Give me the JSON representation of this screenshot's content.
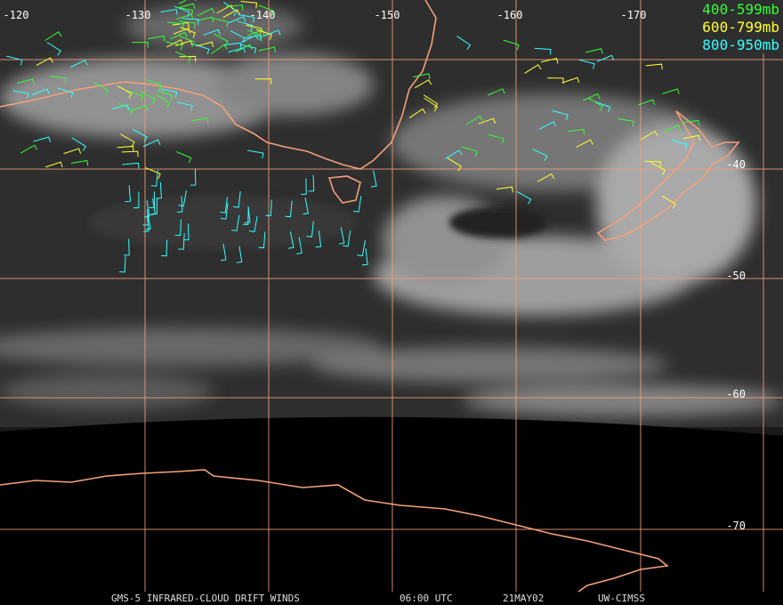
{
  "map": {
    "longitude_labels": [
      "-120",
      "-130",
      "-140",
      "-150",
      "-160",
      "-170"
    ],
    "latitude_labels": [
      "-40",
      "-50",
      "-60",
      "-70"
    ],
    "legend": [
      {
        "label": "400-599mb",
        "color": "#33ff33"
      },
      {
        "label": "600-799mb",
        "color": "#ffff33"
      },
      {
        "label": "800-950mb",
        "color": "#33ffff"
      }
    ],
    "footer": [
      "GMS-5 INFRARED-CLOUD DRIFT WINDS",
      "06:00 UTC",
      "21MAY02",
      "UW-CIMSS"
    ]
  }
}
